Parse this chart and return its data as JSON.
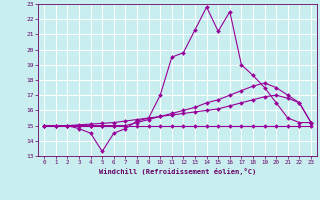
{
  "xlabel": "Windchill (Refroidissement éolien,°C)",
  "bg_color": "#c8eef0",
  "grid_color": "#ffffff",
  "line_color": "#990099",
  "xlim": [
    -0.5,
    23.5
  ],
  "ylim": [
    13,
    23
  ],
  "xticks": [
    0,
    1,
    2,
    3,
    4,
    5,
    6,
    7,
    8,
    9,
    10,
    11,
    12,
    13,
    14,
    15,
    16,
    17,
    18,
    19,
    20,
    21,
    22,
    23
  ],
  "yticks": [
    13,
    14,
    15,
    16,
    17,
    18,
    19,
    20,
    21,
    22,
    23
  ],
  "hours": [
    0,
    1,
    2,
    3,
    4,
    5,
    6,
    7,
    8,
    9,
    10,
    11,
    12,
    13,
    14,
    15,
    16,
    17,
    18,
    19,
    20,
    21,
    22,
    23
  ],
  "line1": [
    15.0,
    15.0,
    15.0,
    14.8,
    14.5,
    13.3,
    14.5,
    14.8,
    15.3,
    15.5,
    17.0,
    19.5,
    19.8,
    21.3,
    22.8,
    21.2,
    22.5,
    19.0,
    18.3,
    17.5,
    16.5,
    15.5,
    15.2,
    15.2
  ],
  "line2": [
    15.0,
    15.0,
    15.0,
    15.0,
    15.0,
    15.0,
    15.0,
    15.0,
    15.2,
    15.4,
    15.6,
    15.8,
    16.0,
    16.2,
    16.5,
    16.7,
    17.0,
    17.3,
    17.6,
    17.8,
    17.5,
    17.0,
    16.5,
    15.2
  ],
  "line3": [
    15.0,
    15.0,
    15.0,
    15.05,
    15.1,
    15.15,
    15.2,
    15.3,
    15.4,
    15.5,
    15.6,
    15.7,
    15.8,
    15.9,
    16.0,
    16.1,
    16.3,
    16.5,
    16.7,
    16.9,
    17.0,
    16.8,
    16.5,
    15.2
  ],
  "line4": [
    15.0,
    15.0,
    15.0,
    15.0,
    15.0,
    15.0,
    15.0,
    15.0,
    15.0,
    15.0,
    15.0,
    15.0,
    15.0,
    15.0,
    15.0,
    15.0,
    15.0,
    15.0,
    15.0,
    15.0,
    15.0,
    15.0,
    15.0,
    15.0
  ]
}
